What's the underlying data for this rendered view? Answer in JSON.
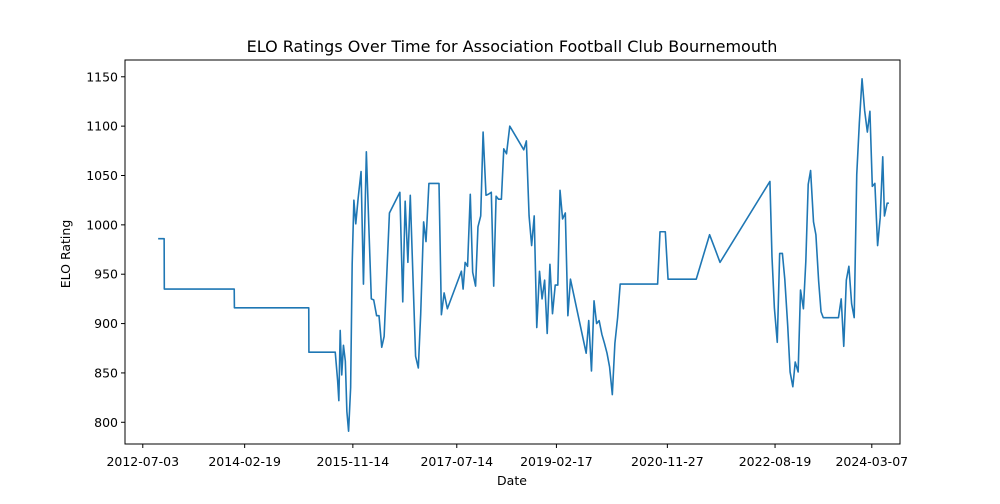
{
  "chart_data": {
    "type": "line",
    "title": "ELO Ratings Over Time for Association Football Club Bournemouth",
    "xlabel": "Date",
    "ylabel": "ELO Rating",
    "x_tick_labels": [
      "2012-07-03",
      "2014-02-19",
      "2015-11-14",
      "2017-07-14",
      "2019-02-17",
      "2020-11-27",
      "2022-08-19",
      "2024-03-07"
    ],
    "y_ticks": [
      800,
      850,
      900,
      950,
      1000,
      1050,
      1100,
      1150
    ],
    "xlim": [
      "2012-03-21",
      "2024-08-19"
    ],
    "ylim": [
      778,
      1167
    ],
    "grid": false,
    "line_color": "#1f77b4",
    "series": [
      {
        "x": [
          "2012-10-01",
          "2012-11-05",
          "2012-11-06",
          "2013-12-20",
          "2013-12-21",
          "2015-03-01",
          "2015-03-02",
          "2015-08-03",
          "2015-08-17",
          "2015-08-24",
          "2015-09-01",
          "2015-09-10",
          "2015-09-20",
          "2015-10-01",
          "2015-10-10",
          "2015-10-20",
          "2015-11-01",
          "2015-11-10",
          "2015-11-20",
          "2015-12-01",
          "2015-12-15",
          "2016-01-01",
          "2016-01-15",
          "2016-02-01",
          "2016-02-15",
          "2016-03-01",
          "2016-03-15",
          "2016-04-01",
          "2016-04-15",
          "2016-05-01",
          "2016-05-15",
          "2016-06-15",
          "2016-08-15",
          "2016-09-01",
          "2016-09-15",
          "2016-10-01",
          "2016-10-15",
          "2016-11-01",
          "2016-11-15",
          "2016-12-01",
          "2016-12-15",
          "2017-01-01",
          "2017-01-15",
          "2017-02-01",
          "2017-02-15",
          "2017-03-01",
          "2017-03-15",
          "2017-04-01",
          "2017-04-15",
          "2017-05-01",
          "2017-05-20",
          "2017-08-10",
          "2017-08-20",
          "2017-09-01",
          "2017-09-15",
          "2017-10-01",
          "2017-10-15",
          "2017-11-01",
          "2017-11-15",
          "2017-12-01",
          "2017-12-15",
          "2018-01-01",
          "2018-01-15",
          "2018-02-01",
          "2018-02-15",
          "2018-03-01",
          "2018-03-15",
          "2018-04-01",
          "2018-04-15",
          "2018-05-01",
          "2018-05-20",
          "2018-08-10",
          "2018-08-25",
          "2018-09-10",
          "2018-09-25",
          "2018-10-10",
          "2018-10-25",
          "2018-11-10",
          "2018-11-25",
          "2018-12-10",
          "2018-12-25",
          "2019-01-10",
          "2019-01-25",
          "2019-02-10",
          "2019-02-25",
          "2019-03-10",
          "2019-03-25",
          "2019-04-10",
          "2019-04-25",
          "2019-05-10",
          "2019-08-10",
          "2019-08-25",
          "2019-09-10",
          "2019-09-25",
          "2019-10-10",
          "2019-10-25",
          "2019-11-10",
          "2019-11-25",
          "2019-12-10",
          "2019-12-25",
          "2020-01-10",
          "2020-01-25",
          "2020-02-10",
          "2020-02-25",
          "2020-03-08",
          "2020-06-20",
          "2020-07-05",
          "2020-07-20",
          "2020-07-26",
          "2020-09-15",
          "2020-10-01",
          "2020-10-15",
          "2020-11-01",
          "2020-11-15",
          "2020-12-01",
          "2020-12-15",
          "2021-01-01",
          "2021-01-15",
          "2021-02-01",
          "2021-02-15",
          "2021-03-01",
          "2021-03-15",
          "2021-04-01",
          "2021-04-15",
          "2021-05-01",
          "2021-05-15",
          "2021-08-01",
          "2021-09-01",
          "2021-10-01",
          "2022-07-20",
          "2022-08-01",
          "2022-08-15",
          "2022-09-01",
          "2022-09-15",
          "2022-10-01",
          "2022-10-15",
          "2022-11-01",
          "2022-11-15",
          "2022-12-01",
          "2022-12-15",
          "2023-01-01",
          "2023-01-15",
          "2023-02-01",
          "2023-02-15",
          "2023-03-01",
          "2023-03-15",
          "2023-04-01",
          "2023-04-15",
          "2023-05-01",
          "2023-05-15",
          "2023-05-28",
          "2023-07-15",
          "2023-08-12",
          "2023-08-25",
          "2023-09-10",
          "2023-09-25",
          "2023-10-10",
          "2023-10-25",
          "2023-11-10",
          "2023-11-25",
          "2023-12-10",
          "2023-12-25",
          "2024-01-10",
          "2024-01-25",
          "2024-02-10",
          "2024-02-25",
          "2024-03-10",
          "2024-03-25",
          "2024-04-10",
          "2024-04-25",
          "2024-05-10",
          "2024-05-20",
          "2024-06-05",
          "2024-06-15"
        ],
        "y": [
          986,
          986,
          935,
          935,
          916,
          916,
          871,
          871,
          842,
          822,
          893,
          848,
          878,
          862,
          811,
          791,
          835,
          960,
          1025,
          1001,
          1027,
          1054,
          940,
          1074,
          1001,
          925,
          924,
          908,
          908,
          876,
          887,
          1012,
          1033,
          922,
          1024,
          962,
          1030,
          940,
          867,
          855,
          910,
          1003,
          983,
          1042,
          1042,
          1042,
          1042,
          1042,
          909,
          931,
          915,
          953,
          935,
          962,
          958,
          1031,
          952,
          938,
          998,
          1009,
          1094,
          1030,
          1031,
          1033,
          938,
          1029,
          1026,
          1026,
          1077,
          1072,
          1100,
          1076,
          1085,
          1009,
          979,
          1009,
          896,
          953,
          925,
          944,
          890,
          960,
          910,
          939,
          939,
          1035,
          1006,
          1012,
          908,
          945,
          870,
          903,
          852,
          923,
          900,
          903,
          889,
          880,
          870,
          856,
          828,
          880,
          906,
          940,
          940,
          940,
          940,
          940,
          940,
          940,
          940,
          993,
          993,
          993,
          945,
          945,
          945,
          945,
          945,
          945,
          945,
          945,
          945,
          945,
          945,
          945,
          990,
          976,
          962,
          1044,
          968,
          916,
          881,
          971,
          971,
          945,
          898,
          851,
          836,
          861,
          851,
          934,
          915,
          963,
          1041,
          1055,
          1003,
          990,
          943,
          912,
          906,
          906,
          906,
          906,
          925,
          877,
          944,
          958,
          920,
          906,
          1051,
          1103,
          1148,
          1116,
          1094,
          1115,
          1039,
          1042,
          979,
          1007,
          1069,
          1009,
          1022,
          1022
        ]
      }
    ]
  }
}
